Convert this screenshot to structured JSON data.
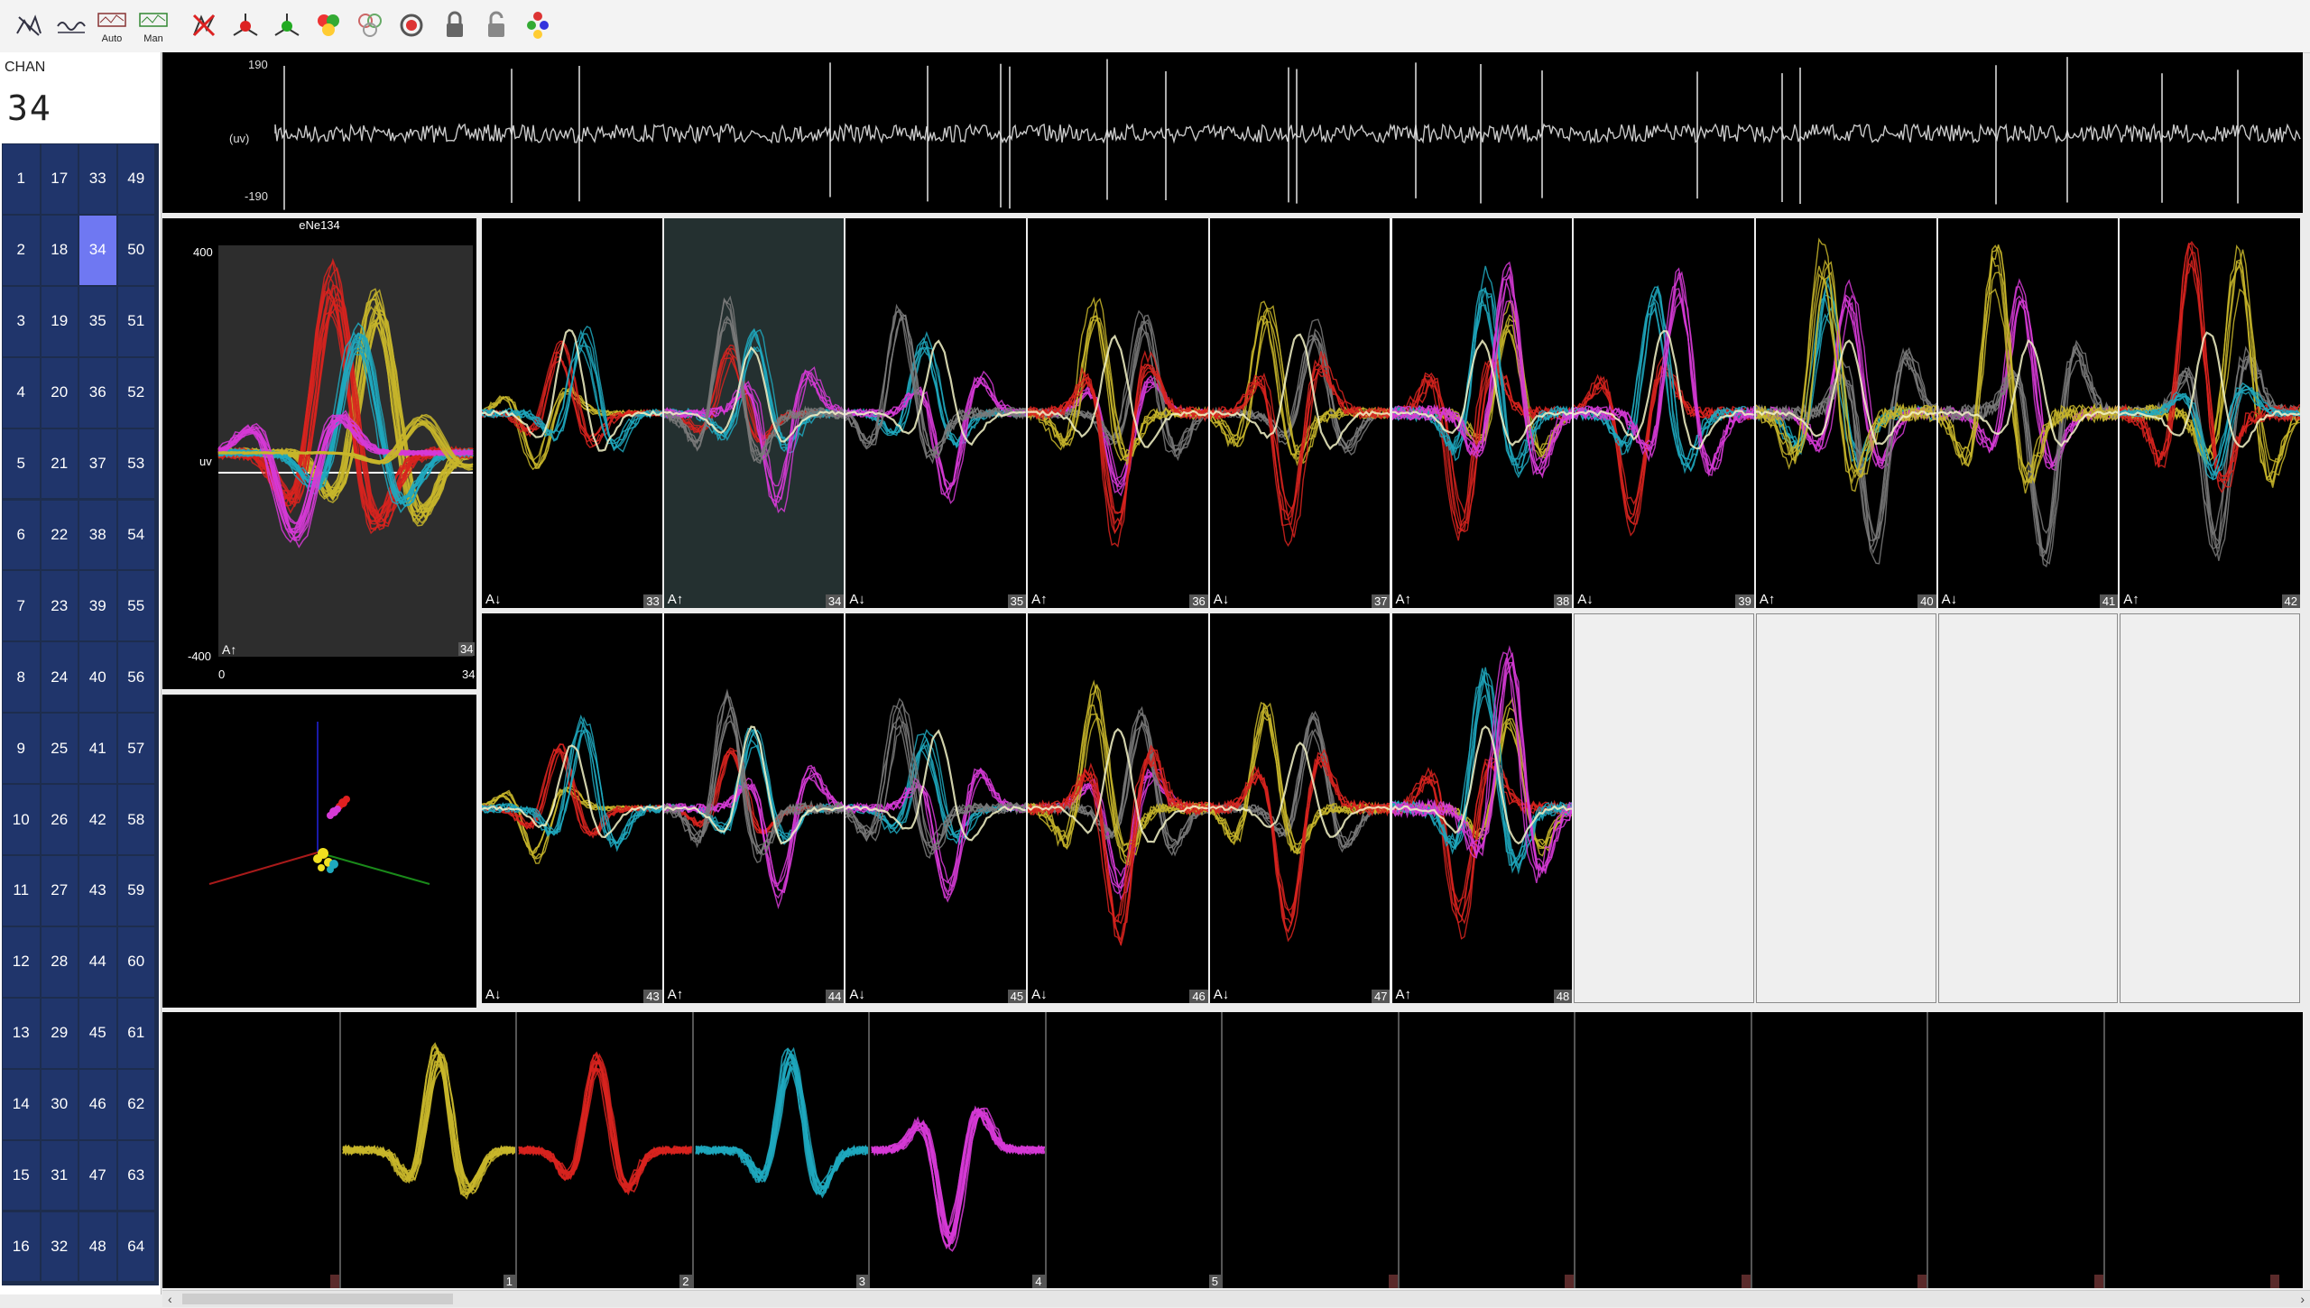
{
  "toolbar": {
    "buttons": [
      {
        "name": "spike-sort-icon"
      },
      {
        "name": "threshold-icon"
      },
      {
        "name": "auto-sort-icon",
        "text": "Auto"
      },
      {
        "name": "manual-sort-icon",
        "text": "Man"
      },
      {
        "name": "delete-unit-icon"
      },
      {
        "name": "cluster-red-icon"
      },
      {
        "name": "cluster-green-icon"
      },
      {
        "name": "merge-units-icon"
      },
      {
        "name": "split-units-icon"
      },
      {
        "name": "target-icon"
      },
      {
        "name": "lock-icon"
      },
      {
        "name": "unlock-icon"
      },
      {
        "name": "palette-icon"
      }
    ]
  },
  "channel_panel": {
    "label": "CHAN",
    "value": "34",
    "channels": [
      "1",
      "17",
      "33",
      "49",
      "2",
      "18",
      "34",
      "50",
      "3",
      "19",
      "35",
      "51",
      "4",
      "20",
      "36",
      "52",
      "5",
      "21",
      "37",
      "53",
      "6",
      "22",
      "38",
      "54",
      "7",
      "23",
      "39",
      "55",
      "8",
      "24",
      "40",
      "56",
      "9",
      "25",
      "41",
      "57",
      "10",
      "26",
      "42",
      "58",
      "11",
      "27",
      "43",
      "59",
      "12",
      "28",
      "44",
      "60",
      "13",
      "29",
      "45",
      "61",
      "14",
      "30",
      "46",
      "62",
      "15",
      "31",
      "47",
      "63",
      "16",
      "32",
      "48",
      "64"
    ],
    "selected": "34"
  },
  "raw_trace": {
    "ymax": "190",
    "ylabel": "(uv)",
    "ymin": "-190"
  },
  "unit_plot": {
    "title": "eNe134",
    "ymax": "400",
    "ylabel": "uv",
    "ymin": "-400",
    "xmin": "0",
    "xmax": "34",
    "tag": "A↑",
    "channel": "34"
  },
  "grid": {
    "row1": [
      {
        "tag": "A↓",
        "ch": "33"
      },
      {
        "tag": "A↑",
        "ch": "34"
      },
      {
        "tag": "A↓",
        "ch": "35"
      },
      {
        "tag": "A↑",
        "ch": "36"
      },
      {
        "tag": "A↓",
        "ch": "37"
      },
      {
        "tag": "A↑",
        "ch": "38"
      },
      {
        "tag": "A↓",
        "ch": "39"
      },
      {
        "tag": "A↑",
        "ch": "40"
      },
      {
        "tag": "A↓",
        "ch": "41"
      },
      {
        "tag": "A↑",
        "ch": "42"
      }
    ],
    "row2": [
      {
        "tag": "A↓",
        "ch": "43"
      },
      {
        "tag": "A↑",
        "ch": "44"
      },
      {
        "tag": "A↓",
        "ch": "45"
      },
      {
        "tag": "A↓",
        "ch": "46"
      },
      {
        "tag": "A↓",
        "ch": "47"
      },
      {
        "tag": "A↑",
        "ch": "48"
      }
    ]
  },
  "units": [
    "",
    "1",
    "2",
    "3",
    "4",
    "5",
    "",
    "",
    "",
    "",
    "",
    ""
  ],
  "colors": {
    "yellow": "#c8b62a",
    "red": "#d8231e",
    "cyan": "#1fa8be",
    "magenta": "#d63ad6",
    "grey": "#7a7a7a",
    "white": "#f4f4c8"
  }
}
